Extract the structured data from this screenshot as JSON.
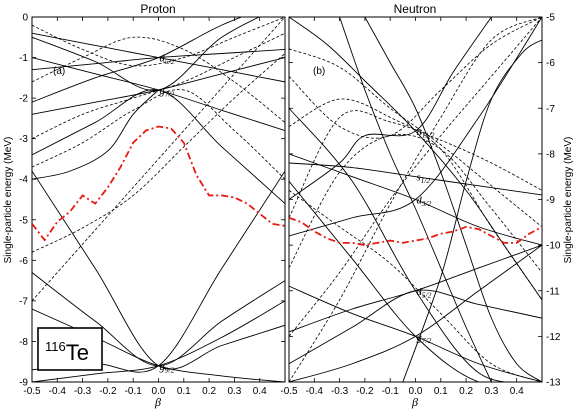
{
  "chart_data": [
    {
      "type": "line",
      "title": "Proton",
      "panel_label": "(a)",
      "xlabel": "β",
      "ylabel": "Single-particle energy (MeV)",
      "xlim": [
        -0.5,
        0.5
      ],
      "ylim": [
        -9,
        0
      ],
      "xticks": [
        "-0.5",
        "-0.4",
        "-0.3",
        "-0.2",
        "-0.1",
        "0.0",
        "0.1",
        "0.2",
        "0.3",
        "0.4"
      ],
      "yticks": [
        "0",
        "-1",
        "-2",
        "-3",
        "-4",
        "-5",
        "-6",
        "-7",
        "-8",
        "-9"
      ],
      "nucleus": {
        "mass": "116",
        "symbol": "Te"
      },
      "orbital_labels": [
        {
          "base": "d",
          "sub": "5/2",
          "x": 0.0,
          "y": -1.0
        },
        {
          "base": "g",
          "sub": "7/2",
          "x": 0.0,
          "y": -1.8
        },
        {
          "base": "g",
          "sub": "9/2",
          "x": 0.0,
          "y": -8.6
        }
      ],
      "fermi_level": {
        "x": [
          -0.5,
          -0.45,
          -0.4,
          -0.35,
          -0.3,
          -0.25,
          -0.2,
          -0.15,
          -0.1,
          -0.05,
          0.0,
          0.05,
          0.1,
          0.15,
          0.2,
          0.25,
          0.3,
          0.35,
          0.4,
          0.45,
          0.5
        ],
        "y": [
          -5.1,
          -5.5,
          -5.05,
          -4.8,
          -4.4,
          -4.6,
          -4.2,
          -3.7,
          -3.1,
          -2.8,
          -2.7,
          -2.75,
          -3.1,
          -3.9,
          -4.4,
          -4.4,
          -4.45,
          -4.6,
          -4.85,
          -5.1,
          -5.15
        ]
      },
      "levels_solid": [
        {
          "x": [
            -0.5,
            -0.25,
            0,
            0.25,
            0.5
          ],
          "y": [
            -8.7,
            -8.55,
            -8.6,
            -6.2,
            -3.8
          ]
        },
        {
          "x": [
            -0.5,
            -0.25,
            0,
            0.25,
            0.5
          ],
          "y": [
            -7.2,
            -7.9,
            -8.6,
            -8.85,
            -9.0
          ]
        },
        {
          "x": [
            -0.5,
            -0.25,
            0,
            0.25,
            0.5
          ],
          "y": [
            -6.3,
            -7.5,
            -8.6,
            -7.5,
            -6.5
          ]
        },
        {
          "x": [
            -0.5,
            -0.25,
            0,
            0.25,
            0.5
          ],
          "y": [
            -3.8,
            -6.2,
            -8.6,
            -8.1,
            -7.6
          ]
        },
        {
          "x": [
            -0.5,
            -0.25,
            0,
            0.25,
            0.5
          ],
          "y": [
            -9.0,
            -8.8,
            -8.6,
            -7.9,
            -7.0
          ]
        },
        {
          "x": [
            -0.5,
            -0.25,
            0,
            0.25,
            0.5
          ],
          "y": [
            -3.4,
            -2.6,
            -1.8,
            -3.2,
            -4.6
          ]
        },
        {
          "x": [
            -0.5,
            -0.25,
            0,
            0.25,
            0.5
          ],
          "y": [
            -2.4,
            -2.1,
            -1.8,
            -1.4,
            -1.0
          ]
        },
        {
          "x": [
            -0.5,
            -0.25,
            0,
            0.25,
            0.5
          ],
          "y": [
            -1.0,
            -1.4,
            -1.8,
            -2.3,
            -2.8
          ]
        },
        {
          "x": [
            -0.5,
            -0.25,
            0,
            0.25,
            0.5
          ],
          "y": [
            -0.5,
            -1.1,
            -1.8,
            -0.5,
            0.3
          ]
        },
        {
          "x": [
            -0.5,
            -0.25,
            0,
            0.25,
            0.5
          ],
          "y": [
            -1.3,
            -1.15,
            -1.0,
            -0.9,
            -0.8
          ]
        },
        {
          "x": [
            -0.5,
            -0.25,
            0,
            0.25,
            0.5
          ],
          "y": [
            -0.4,
            -0.7,
            -1.0,
            -1.3,
            -1.6
          ]
        },
        {
          "x": [
            -0.5,
            -0.25,
            0,
            0.25,
            0.5
          ],
          "y": [
            -2.1,
            -1.5,
            -1.0,
            -0.2,
            0.4
          ]
        },
        {
          "x": [
            -0.5,
            -0.35,
            -0.2,
            -0.1,
            0
          ],
          "y": [
            -4.0,
            -3.8,
            -3.3,
            -2.4,
            -1.8
          ]
        }
      ],
      "levels_dashed": [
        {
          "x": [
            -0.5,
            -0.3,
            -0.1,
            0.1,
            0.3,
            0.5
          ],
          "y": [
            -7.0,
            -5.6,
            -4.2,
            -2.8,
            -1.4,
            0.0
          ]
        },
        {
          "x": [
            -0.5,
            -0.3,
            -0.1,
            0.1,
            0.3,
            0.5
          ],
          "y": [
            -3.0,
            -2.4,
            -2.0,
            -1.6,
            -1.0,
            -0.4
          ]
        },
        {
          "x": [
            -0.5,
            -0.3,
            -0.1,
            0.1,
            0.3,
            0.5
          ],
          "y": [
            -1.6,
            -1.0,
            -0.5,
            -0.8,
            -1.6,
            -2.6
          ]
        },
        {
          "x": [
            -0.5,
            -0.3,
            -0.1,
            0.1,
            0.3,
            0.5
          ],
          "y": [
            -5.8,
            -5.2,
            -4.4,
            -3.2,
            -2.0,
            -0.9
          ]
        },
        {
          "x": [
            -0.5,
            -0.3,
            -0.1,
            0.1,
            0.3,
            0.5
          ],
          "y": [
            -0.2,
            -0.8,
            -1.2,
            -1.0,
            -0.5,
            0.0
          ]
        },
        {
          "x": [
            -0.5,
            -0.3,
            -0.1,
            0.1,
            0.3,
            0.5
          ],
          "y": [
            -3.7,
            -3.1,
            -2.3,
            -1.8,
            -2.8,
            -4.0
          ]
        }
      ]
    },
    {
      "type": "line",
      "title": "Neutron",
      "panel_label": "(b)",
      "xlabel": "β",
      "ylabel": "Single-particle energy (MeV)",
      "xlim": [
        -0.5,
        0.5
      ],
      "ylim": [
        -13,
        -5
      ],
      "xticks": [
        "-0.5",
        "-0.4",
        "-0.3",
        "-0.2",
        "-0.1",
        "0.0",
        "0.1",
        "0.2",
        "0.3",
        "0.4"
      ],
      "yticks": [
        "-5",
        "-6",
        "-7",
        "-8",
        "-9",
        "-10",
        "-11",
        "-12",
        "-13"
      ],
      "orbital_labels": [
        {
          "base": "h",
          "sub": "11/2",
          "x": 0.0,
          "y": -7.5
        },
        {
          "base": "s",
          "sub": "1/2",
          "x": 0.0,
          "y": -8.5
        },
        {
          "base": "d",
          "sub": "3/2",
          "x": 0.0,
          "y": -9.0
        },
        {
          "base": "d",
          "sub": "5/2",
          "x": 0.0,
          "y": -11.0
        },
        {
          "base": "g",
          "sub": "7/2",
          "x": 0.0,
          "y": -12.0
        }
      ],
      "fermi_level": {
        "x": [
          -0.5,
          -0.45,
          -0.4,
          -0.35,
          -0.3,
          -0.25,
          -0.2,
          -0.15,
          -0.1,
          -0.05,
          0.0,
          0.05,
          0.1,
          0.15,
          0.2,
          0.25,
          0.3,
          0.35,
          0.4,
          0.45,
          0.5
        ],
        "y": [
          -9.4,
          -9.5,
          -9.7,
          -9.85,
          -9.95,
          -9.95,
          -10.0,
          -9.95,
          -9.9,
          -9.95,
          -9.9,
          -9.85,
          -9.75,
          -9.7,
          -9.6,
          -9.65,
          -9.8,
          -9.95,
          -9.95,
          -9.75,
          -9.6
        ]
      },
      "levels_solid": [
        {
          "x": [
            -0.5,
            -0.25,
            0,
            0.25,
            0.5
          ],
          "y": [
            -7.0,
            -8.6,
            -11.0,
            -12.8,
            -13.0
          ]
        },
        {
          "x": [
            -0.5,
            -0.25,
            0,
            0.25,
            0.5
          ],
          "y": [
            -11.9,
            -11.4,
            -11.0,
            -10.5,
            -10.0
          ]
        },
        {
          "x": [
            -0.5,
            -0.25,
            0,
            0.25,
            0.5
          ],
          "y": [
            -12.6,
            -11.8,
            -11.0,
            -11.3,
            -11.6
          ]
        },
        {
          "x": [
            -0.5,
            -0.25,
            0,
            0.25,
            0.5
          ],
          "y": [
            -13.0,
            -12.6,
            -12.0,
            -11.0,
            -10.0
          ]
        },
        {
          "x": [
            -0.5,
            -0.25,
            0,
            0.25,
            0.5
          ],
          "y": [
            -10.9,
            -11.5,
            -12.0,
            -12.6,
            -13.0
          ]
        },
        {
          "x": [
            -0.5,
            -0.25,
            0,
            0.25,
            0.5
          ],
          "y": [
            -8.6,
            -10.3,
            -12.0,
            -13.0,
            -13.0
          ]
        },
        {
          "x": [
            -0.5,
            -0.25,
            0,
            0.25,
            0.5
          ],
          "y": [
            -8.0,
            -8.5,
            -9.0,
            -9.6,
            -10.0
          ]
        },
        {
          "x": [
            -0.5,
            -0.25,
            0,
            0.25,
            0.5
          ],
          "y": [
            -9.8,
            -9.4,
            -9.0,
            -7.2,
            -5.0
          ]
        },
        {
          "x": [
            -0.5,
            -0.25,
            0,
            0.25,
            0.5
          ],
          "y": [
            -8.2,
            -8.3,
            -8.5,
            -8.7,
            -8.9
          ]
        },
        {
          "x": [
            -0.5,
            -0.35,
            -0.2,
            0,
            0.2,
            0.35,
            0.5
          ],
          "y": [
            -5.0,
            -5.6,
            -6.4,
            -7.5,
            -8.8,
            -10.0,
            -11.2
          ]
        },
        {
          "x": [
            -0.5,
            -0.3,
            -0.2,
            0,
            0.15,
            0.3
          ],
          "y": [
            -9.0,
            -8.2,
            -7.6,
            -7.5,
            -6.2,
            -5.0
          ]
        },
        {
          "x": [
            -0.3,
            -0.2,
            -0.1,
            0.0,
            0.1,
            0.2,
            0.3
          ],
          "y": [
            -5.0,
            -6.6,
            -8.0,
            -9.2,
            -10.5,
            -11.8,
            -13.0
          ]
        },
        {
          "x": [
            -0.2,
            -0.1,
            0.0,
            0.1,
            0.2,
            0.3,
            0.4,
            0.5
          ],
          "y": [
            -5.0,
            -6.0,
            -7.0,
            -8.4,
            -10.0,
            -11.6,
            -12.6,
            -13.0
          ]
        },
        {
          "x": [
            -0.05,
            0.1,
            0.2,
            0.3,
            0.42,
            0.5
          ],
          "y": [
            -13.0,
            -10.7,
            -8.6,
            -6.8,
            -5.8,
            -5.5
          ]
        }
      ],
      "levels_dashed": [
        {
          "x": [
            -0.5,
            -0.3,
            -0.1,
            0.1,
            0.3,
            0.5
          ],
          "y": [
            -12.0,
            -10.6,
            -9.0,
            -7.6,
            -6.3,
            -5.0
          ]
        },
        {
          "x": [
            -0.5,
            -0.3,
            -0.1,
            0.1,
            0.3,
            0.5
          ],
          "y": [
            -5.7,
            -6.1,
            -7.0,
            -7.8,
            -8.7,
            -9.6
          ]
        },
        {
          "x": [
            -0.5,
            -0.3,
            -0.1,
            0.1,
            0.3,
            0.5
          ],
          "y": [
            -9.4,
            -7.2,
            -7.3,
            -7.7,
            -8.2,
            -8.8
          ]
        },
        {
          "x": [
            -0.5,
            -0.3,
            -0.1,
            0.1,
            0.3,
            0.5
          ],
          "y": [
            -6.3,
            -7.4,
            -7.6,
            -6.6,
            -5.6,
            -5.0
          ]
        },
        {
          "x": [
            -0.5,
            -0.3,
            -0.1,
            0.1,
            0.3,
            0.5
          ],
          "y": [
            -10.5,
            -8.4,
            -7.6,
            -7.9,
            -9.2,
            -10.6
          ]
        },
        {
          "x": [
            -0.5,
            -0.3,
            -0.1,
            0.1,
            0.3,
            0.5
          ],
          "y": [
            -13.0,
            -11.2,
            -9.1,
            -7.2,
            -5.5,
            -5.0
          ]
        },
        {
          "x": [
            -0.5,
            -0.3,
            -0.1,
            0.1,
            0.3,
            0.5
          ],
          "y": [
            -8.8,
            -9.6,
            -10.4,
            -11.5,
            -12.6,
            -13.0
          ]
        },
        {
          "x": [
            -0.5,
            -0.3,
            -0.1,
            0.1,
            0.3,
            0.5
          ],
          "y": [
            -7.4,
            -6.8,
            -7.2,
            -7.9,
            -9.6,
            -11.2
          ]
        }
      ]
    }
  ]
}
